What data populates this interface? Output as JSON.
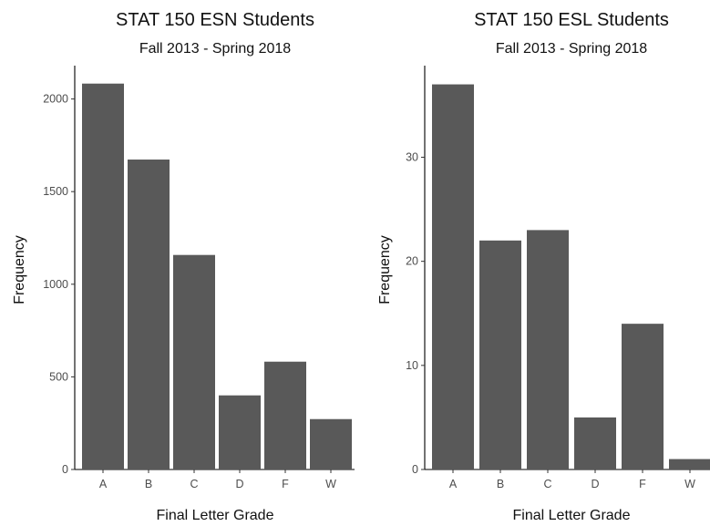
{
  "chart_data": [
    {
      "type": "bar",
      "title": "STAT 150 ESN Students",
      "subtitle": "Fall 2013 - Spring 2018",
      "xlabel": "Final Letter Grade",
      "ylabel": "Frequency",
      "categories": [
        "A",
        "B",
        "C",
        "D",
        "F",
        "W"
      ],
      "values": [
        2083,
        1673,
        1158,
        400,
        582,
        272
      ],
      "ylim": [
        0,
        2180
      ],
      "yticks": [
        0,
        500,
        1000,
        1500,
        2000
      ],
      "bar_color": "#595959",
      "grid": false
    },
    {
      "type": "bar",
      "title": "STAT 150 ESL Students",
      "subtitle": "Fall 2013 - Spring 2018",
      "xlabel": "Final Letter Grade",
      "ylabel": "Frequency",
      "categories": [
        "A",
        "B",
        "C",
        "D",
        "F",
        "W"
      ],
      "values": [
        37,
        22,
        23,
        5,
        14,
        1
      ],
      "ylim": [
        0,
        38.8
      ],
      "yticks": [
        0,
        10,
        20,
        30
      ],
      "bar_color": "#595959",
      "grid": false
    }
  ]
}
